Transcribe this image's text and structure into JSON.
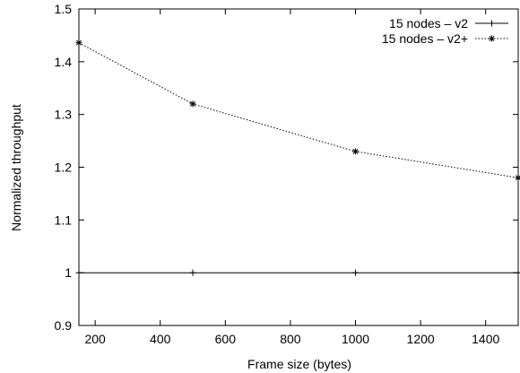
{
  "chart_data": {
    "type": "line",
    "title": "",
    "xlabel": "Frame size (bytes)",
    "ylabel": "Normalized throughput",
    "xlim": [
      150,
      1500
    ],
    "ylim": [
      0.9,
      1.5
    ],
    "x_ticks": [
      200,
      400,
      600,
      800,
      1000,
      1200,
      1400
    ],
    "y_ticks": [
      0.9,
      1,
      1.1,
      1.2,
      1.3,
      1.4,
      1.5
    ],
    "x_tick_labels": [
      "200",
      "400",
      "600",
      "800",
      "1000",
      "1200",
      "1400"
    ],
    "y_tick_labels": [
      "0.9",
      "1",
      "1.1",
      "1.2",
      "1.3",
      "1.4",
      "1.5"
    ],
    "grid": false,
    "legend_position": "top-right",
    "series": [
      {
        "name": "15 nodes – v2",
        "line_style": "solid",
        "marker": "plus",
        "color": "#000000",
        "points": [
          {
            "x": 150,
            "y": 1.0
          },
          {
            "x": 500,
            "y": 1.0
          },
          {
            "x": 1000,
            "y": 1.0
          },
          {
            "x": 1500,
            "y": 1.0
          }
        ]
      },
      {
        "name": "15 nodes – v2+",
        "line_style": "dotted",
        "marker": "asterisk",
        "color": "#000000",
        "points": [
          {
            "x": 150,
            "y": 1.436
          },
          {
            "x": 500,
            "y": 1.32
          },
          {
            "x": 1000,
            "y": 1.23
          },
          {
            "x": 1500,
            "y": 1.18
          }
        ]
      }
    ]
  }
}
